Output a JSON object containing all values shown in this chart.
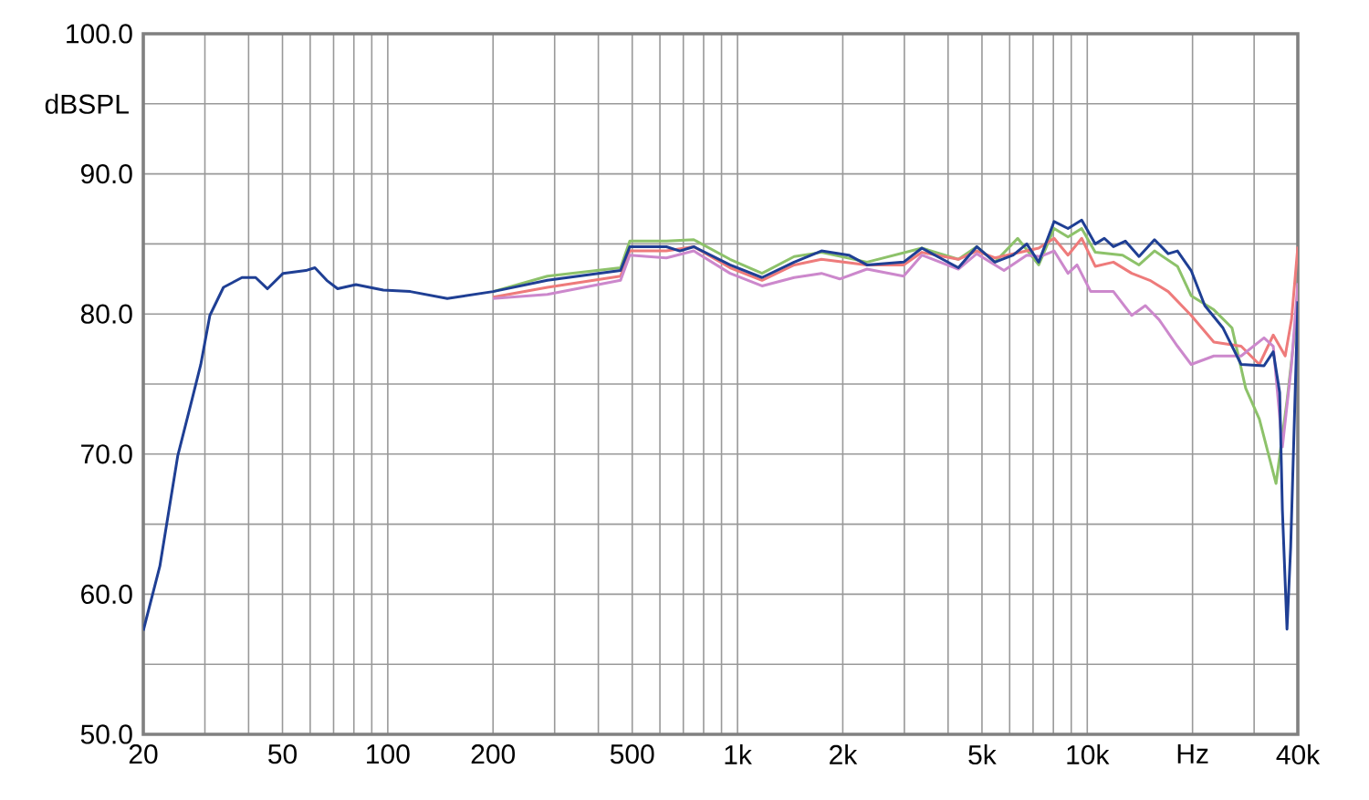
{
  "chart_data": {
    "type": "line",
    "ylabel": "dBSPL",
    "log": "x",
    "grid": true,
    "marker": "none",
    "line_style": "solid",
    "xlim": [
      20,
      40000
    ],
    "ylim": [
      50,
      100
    ],
    "xticks": [
      20,
      {
        "value": 30,
        "label": null
      },
      {
        "value": 40,
        "label": null
      },
      50,
      {
        "value": 60,
        "label": null
      },
      {
        "value": 70,
        "label": null
      },
      {
        "value": 80,
        "label": null
      },
      {
        "value": 90,
        "label": null
      },
      100,
      200,
      {
        "value": 300,
        "label": null
      },
      {
        "value": 400,
        "label": null
      },
      500,
      {
        "value": 600,
        "label": null
      },
      {
        "value": 700,
        "label": null
      },
      {
        "value": 800,
        "label": null
      },
      {
        "value": 900,
        "label": null
      },
      {
        "value": 1000,
        "label": "1k"
      },
      {
        "value": 2000,
        "label": "2k"
      },
      {
        "value": 3000,
        "label": null
      },
      {
        "value": 4000,
        "label": null
      },
      {
        "value": 5000,
        "label": "5k"
      },
      {
        "value": 6000,
        "label": null
      },
      {
        "value": 7000,
        "label": null
      },
      {
        "value": 8000,
        "label": null
      },
      {
        "value": 9000,
        "label": null
      },
      {
        "value": 10000,
        "label": "10k"
      },
      {
        "value": 20000,
        "label": "Hz"
      },
      {
        "value": 30000,
        "label": null
      },
      {
        "value": 40000,
        "label": "40k"
      }
    ],
    "yticks": [
      {
        "value": 50,
        "label": "50.0"
      },
      {
        "value": 55,
        "label": null
      },
      {
        "value": 60,
        "label": "60.0"
      },
      {
        "value": 65,
        "label": null
      },
      {
        "value": 70,
        "label": "70.0"
      },
      {
        "value": 75,
        "label": null
      },
      {
        "value": 80,
        "label": "80.0"
      },
      {
        "value": 85,
        "label": null
      },
      {
        "value": 90,
        "label": "90.0"
      },
      {
        "value": 95,
        "label": null
      },
      {
        "value": 100,
        "label": "100.0"
      }
    ],
    "series": [
      {
        "color": "#8dc26a",
        "x": [
          200,
          286,
          463,
          492,
          626,
          750,
          952,
          1175,
          1452,
          1738,
          2345,
          3366,
          4280,
          4830,
          5445,
          6325,
          7265,
          8040,
          8810,
          9640,
          10540,
          12620,
          14060,
          15570,
          18110,
          19820,
          23010,
          25940,
          28380,
          31050,
          34660,
          37250,
          40000
        ],
        "values": [
          81.6,
          82.7,
          83.3,
          85.2,
          85.2,
          85.3,
          83.9,
          82.9,
          84.1,
          84.4,
          83.7,
          84.7,
          83.9,
          84.8,
          83.7,
          85.4,
          83.5,
          86.1,
          85.5,
          86.1,
          84.4,
          84.2,
          83.5,
          84.5,
          83.4,
          81.3,
          80.3,
          79.0,
          74.7,
          72.5,
          67.9,
          73.8,
          80.6
        ]
      },
      {
        "color": "#ee7b7b",
        "x": [
          200,
          286,
          463,
          492,
          626,
          750,
          952,
          1175,
          1452,
          1738,
          2345,
          2985,
          3366,
          4280,
          4830,
          5445,
          7265,
          8040,
          8810,
          9640,
          10540,
          11880,
          13400,
          15100,
          17040,
          19820,
          23010,
          27540,
          31050,
          34030,
          36810,
          38380,
          40000
        ],
        "values": [
          81.2,
          81.9,
          82.7,
          84.5,
          84.5,
          84.8,
          83.3,
          82.4,
          83.5,
          83.9,
          83.5,
          83.5,
          84.4,
          83.9,
          84.5,
          84.0,
          84.7,
          85.4,
          84.2,
          85.4,
          83.4,
          83.7,
          82.9,
          82.4,
          81.6,
          79.9,
          78.0,
          77.7,
          76.4,
          78.5,
          77.0,
          79.6,
          84.8
        ]
      },
      {
        "color": "#cc88cc",
        "x": [
          200,
          286,
          463,
          492,
          626,
          750,
          952,
          1175,
          1452,
          1738,
          1960,
          2345,
          2985,
          3366,
          4280,
          4830,
          5780,
          6715,
          7350,
          8040,
          8810,
          9350,
          10230,
          11880,
          13400,
          14660,
          16040,
          18110,
          19820,
          23010,
          27540,
          32020,
          34030,
          36140,
          38380,
          40000
        ],
        "values": [
          81.1,
          81.4,
          82.4,
          84.2,
          84.0,
          84.5,
          82.9,
          82.0,
          82.6,
          82.9,
          82.5,
          83.2,
          82.7,
          84.2,
          83.2,
          84.3,
          83.1,
          84.2,
          84.1,
          84.5,
          82.9,
          83.5,
          81.6,
          81.6,
          79.9,
          80.6,
          79.6,
          77.7,
          76.4,
          77.0,
          77.0,
          78.3,
          77.7,
          70.5,
          76.4,
          82.2
        ]
      },
      {
        "color": "#1f3f94",
        "x": [
          20,
          22.3,
          25.1,
          27.5,
          29.2,
          31.0,
          33.9,
          38.3,
          41.9,
          45.3,
          50.2,
          58.3,
          61.9,
          66.9,
          71.9,
          81.1,
          97.1,
          116,
          148,
          200,
          286,
          463,
          492,
          626,
          684,
          750,
          952,
          1175,
          1452,
          1738,
          2080,
          2345,
          2985,
          3366,
          3795,
          4280,
          4830,
          5445,
          6140,
          6715,
          7265,
          8040,
          8810,
          9640,
          10540,
          11190,
          11880,
          12850,
          14060,
          15570,
          17040,
          18110,
          19820,
          21680,
          24440,
          27540,
          32020,
          34030,
          35500,
          36140,
          37250,
          38170,
          40000
        ],
        "values": [
          57.4,
          62.0,
          69.9,
          73.8,
          76.4,
          79.9,
          81.9,
          82.6,
          82.6,
          81.8,
          82.9,
          83.1,
          83.3,
          82.4,
          81.8,
          82.1,
          81.7,
          81.6,
          81.1,
          81.6,
          82.4,
          83.1,
          84.8,
          84.8,
          84.5,
          84.8,
          83.5,
          82.6,
          83.7,
          84.5,
          84.2,
          83.5,
          83.7,
          84.7,
          84.0,
          83.3,
          84.8,
          83.7,
          84.2,
          85.0,
          83.7,
          86.6,
          86.1,
          86.7,
          85.0,
          85.4,
          84.8,
          85.2,
          84.1,
          85.3,
          84.3,
          84.5,
          83.1,
          80.6,
          79.0,
          76.4,
          76.3,
          77.3,
          74.4,
          66.0,
          57.5,
          63.4,
          80.9
        ]
      }
    ]
  }
}
